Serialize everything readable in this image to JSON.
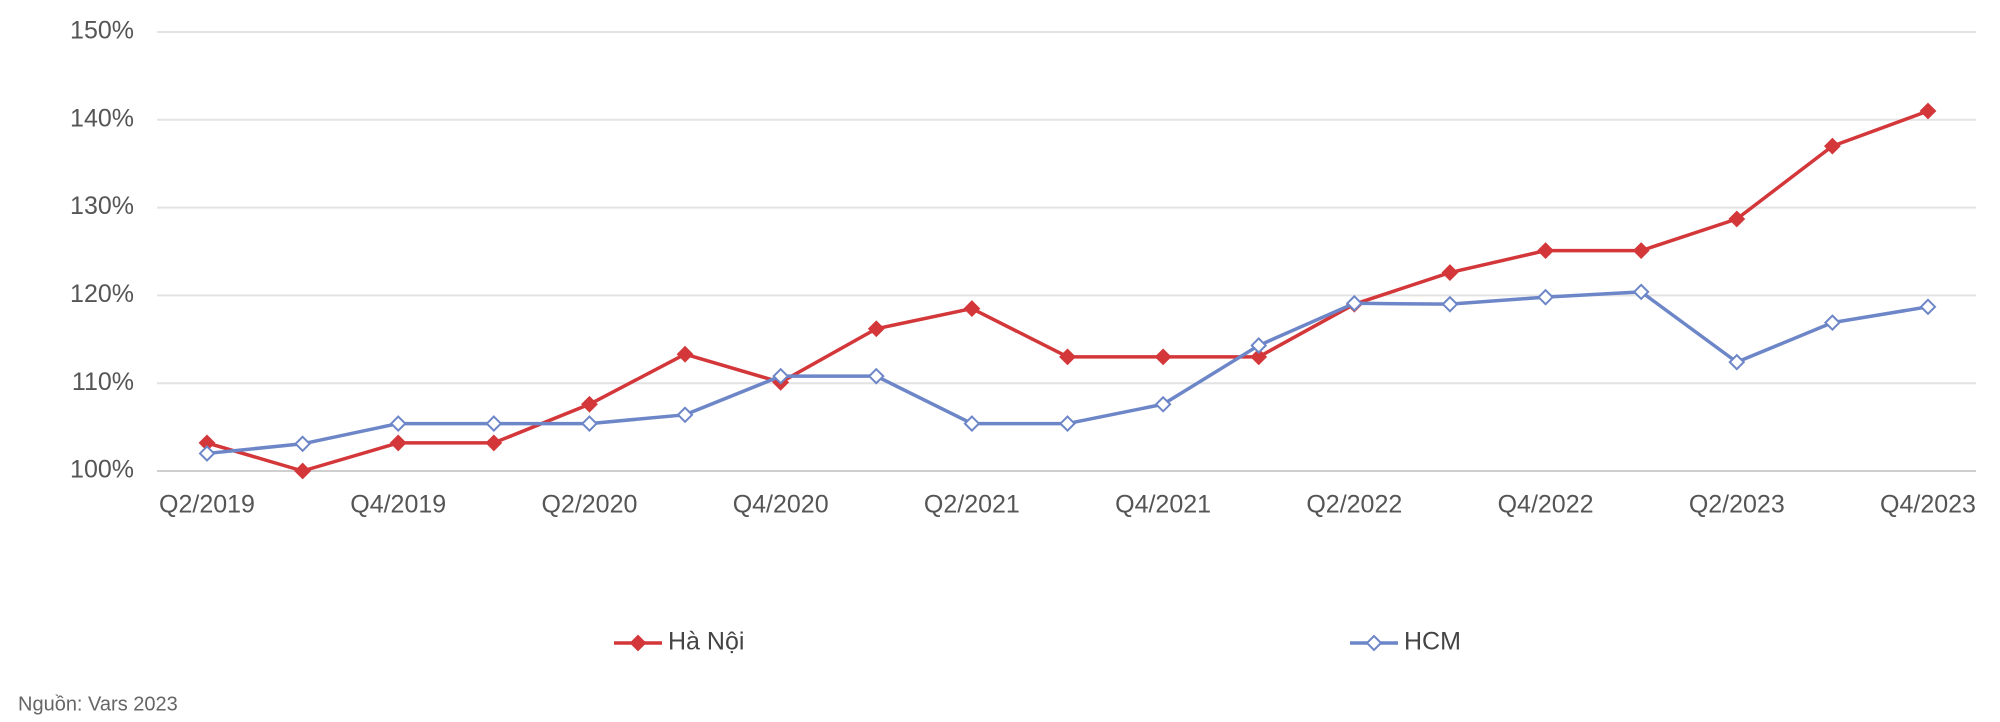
{
  "chart_data": {
    "type": "line",
    "categories": [
      "Q2/2019",
      null,
      "Q4/2019",
      null,
      "Q2/2020",
      null,
      "Q4/2020",
      null,
      "Q2/2021",
      null,
      "Q4/2021",
      null,
      "Q2/2022",
      null,
      "Q4/2022",
      null,
      "Q2/2023",
      null,
      "Q4/2023"
    ],
    "series": [
      {
        "name": "Hà Nội",
        "color": "#d3373a",
        "marker_fill": "filled",
        "values": [
          103.2,
          100,
          103.2,
          103.2,
          107.6,
          113.3,
          110.1,
          116.2,
          118.5,
          113,
          113,
          113,
          119,
          122.6,
          125.1,
          125.1,
          128.7,
          137,
          141
        ]
      },
      {
        "name": "HCM",
        "color": "#6d86c8",
        "marker_fill": "hollow",
        "values": [
          102,
          103.1,
          105.4,
          105.4,
          105.4,
          106.4,
          110.8,
          110.8,
          105.4,
          105.4,
          107.6,
          114.3,
          119.1,
          119,
          119.8,
          120.4,
          112.4,
          116.9,
          118.7
        ]
      }
    ],
    "ylim": [
      100,
      150
    ],
    "yticks": [
      {
        "value": 100,
        "label": "100%"
      },
      {
        "value": 110,
        "label": "110%"
      },
      {
        "value": 120,
        "label": "120%"
      },
      {
        "value": 130,
        "label": "130%"
      },
      {
        "value": 140,
        "label": "140%"
      },
      {
        "value": 150,
        "label": "150%"
      }
    ],
    "grid": true,
    "legend": "bottom",
    "source": "Nguồn: Vars 2023"
  }
}
